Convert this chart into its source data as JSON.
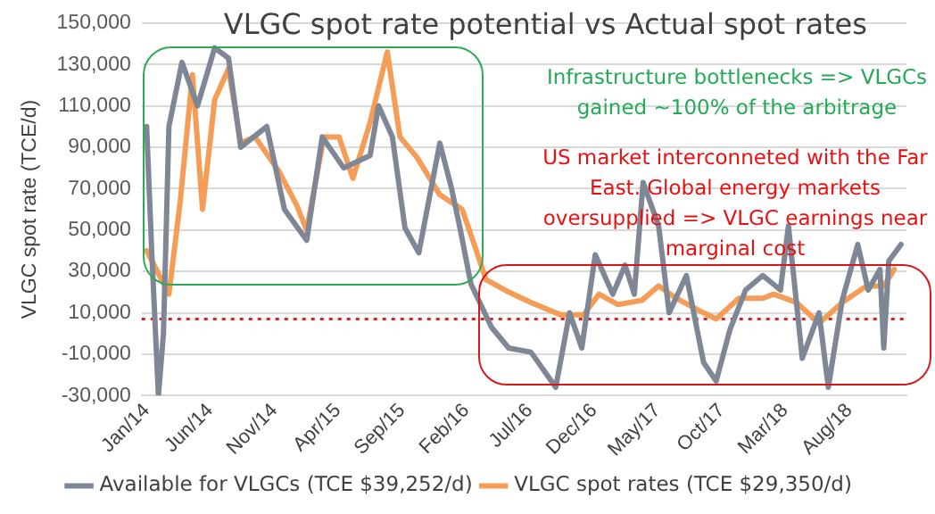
{
  "chart_data": {
    "type": "line",
    "title": "VLGC spot rate potential vs Actual spot rates",
    "ylabel": "VLGC spot rate (TCE/d)",
    "annotations": [
      "Infrastructure bottlenecks => VLGCs gained ~100% of the arbitrage",
      "US market interconneted with the Far East. Global energy markets oversupplied => VLGC earnings near marginal cost"
    ],
    "xlim": [
      "2013-12-20",
      "2018-12-15"
    ],
    "xticks": [
      {
        "value": "2014-01",
        "label": "Jan/14"
      },
      {
        "value": "2014-06",
        "label": "Jun/14"
      },
      {
        "value": "2014-11",
        "label": "Nov/14"
      },
      {
        "value": "2015-04",
        "label": "Apr/15"
      },
      {
        "value": "2015-09",
        "label": "Sep/15"
      },
      {
        "value": "2016-02",
        "label": "Feb/16"
      },
      {
        "value": "2016-07",
        "label": "Jul/16"
      },
      {
        "value": "2016-12",
        "label": "Dec/16"
      },
      {
        "value": "2017-05",
        "label": "May/17"
      },
      {
        "value": "2017-10",
        "label": "Oct/17"
      },
      {
        "value": "2018-03",
        "label": "Mar/18"
      },
      {
        "value": "2018-08",
        "label": "Aug/18"
      }
    ],
    "ylim": [
      -30000,
      150000
    ],
    "yticks": [
      {
        "value": -30000,
        "label": "-30,000"
      },
      {
        "value": -10000,
        "label": "-10,000"
      },
      {
        "value": 10000,
        "label": "10,000"
      },
      {
        "value": 30000,
        "label": "30,000"
      },
      {
        "value": 50000,
        "label": "50,000"
      },
      {
        "value": 70000,
        "label": "70,000"
      },
      {
        "value": 90000,
        "label": "90,000"
      },
      {
        "value": 110000,
        "label": "110,000"
      },
      {
        "value": 130000,
        "label": "130,000"
      },
      {
        "value": 150000,
        "label": "150,000"
      }
    ],
    "grid": "y",
    "legend": "bottom",
    "marker": "none",
    "line_style": "solid",
    "ref_lines": [
      {
        "axis": "y",
        "value": 7000,
        "color": "#e02020",
        "line_style": "dotted"
      }
    ],
    "series": [
      {
        "name": "Available for VLGCs (TCE $39,252/d)",
        "color": "#7f8797",
        "x": [
          "2014-01-01",
          "2014-01-13",
          "2014-01-29",
          "2014-02-10",
          "2014-02-23",
          "2014-03-26",
          "2014-05-02",
          "2014-06-12",
          "2014-07-15",
          "2014-08-13",
          "2014-10-14",
          "2014-11-25",
          "2015-01-17",
          "2015-02-23",
          "2015-04-15",
          "2015-06-17",
          "2015-07-07",
          "2015-08-09",
          "2015-09-08",
          "2015-10-11",
          "2015-11-30",
          "2015-12-28",
          "2016-01-18",
          "2016-02-12",
          "2016-04-01",
          "2016-05-12",
          "2016-07-04",
          "2016-09-01",
          "2016-10-04",
          "2016-11-02",
          "2016-12-04",
          "2017-01-15",
          "2017-02-13",
          "2017-03-07",
          "2017-03-28",
          "2017-05-04",
          "2017-05-29",
          "2017-07-09",
          "2017-08-19",
          "2017-09-18",
          "2017-10-21",
          "2017-11-27",
          "2018-01-07",
          "2018-02-18",
          "2018-03-09",
          "2018-04-11",
          "2018-05-21",
          "2018-06-12",
          "2018-07-15",
          "2018-08-21",
          "2018-09-15",
          "2018-10-13",
          "2018-10-22",
          "2018-11-03",
          "2018-12-02"
        ],
        "values": [
          100000,
          40000,
          -30000,
          0,
          100000,
          131000,
          110000,
          138000,
          133000,
          90000,
          100000,
          60000,
          45000,
          95000,
          80000,
          86000,
          110000,
          95000,
          51000,
          39000,
          92000,
          70000,
          50000,
          24000,
          3000,
          -7000,
          -9000,
          -26000,
          10000,
          -7000,
          38000,
          19000,
          33000,
          19000,
          73000,
          52000,
          10000,
          28000,
          -14000,
          -23000,
          2000,
          21000,
          28000,
          21000,
          52000,
          -12000,
          10000,
          -26000,
          16000,
          43000,
          21000,
          31000,
          -7000,
          35000,
          43000
        ]
      },
      {
        "name": "VLGC spot rates (TCE $29,350/d)",
        "color": "#f59d56",
        "x": [
          "2014-01-01",
          "2014-02-23",
          "2014-03-22",
          "2014-04-20",
          "2014-05-14",
          "2014-06-12",
          "2014-07-15",
          "2014-08-13",
          "2014-09-16",
          "2014-11-13",
          "2014-12-24",
          "2015-01-17",
          "2015-02-27",
          "2015-04-04",
          "2015-05-07",
          "2015-06-17",
          "2015-07-28",
          "2015-08-27",
          "2015-10-07",
          "2015-11-30",
          "2016-01-22",
          "2016-02-20",
          "2016-03-19",
          "2016-05-12",
          "2016-07-04",
          "2016-09-13",
          "2016-11-06",
          "2016-12-13",
          "2017-01-27",
          "2017-03-25",
          "2017-05-04",
          "2017-06-15",
          "2017-08-19",
          "2017-09-18",
          "2017-11-11",
          "2018-01-07",
          "2018-02-02",
          "2018-03-28",
          "2018-05-21",
          "2018-07-15",
          "2018-09-11",
          "2018-10-22",
          "2018-11-16"
        ],
        "values": [
          40000,
          19000,
          64000,
          125000,
          60000,
          113000,
          128000,
          92000,
          95000,
          78000,
          62000,
          50000,
          95000,
          95000,
          75000,
          102000,
          136000,
          95000,
          85000,
          67000,
          60000,
          43000,
          26000,
          20000,
          15000,
          9000,
          9000,
          19000,
          14000,
          16000,
          23000,
          17000,
          10000,
          7000,
          17000,
          17000,
          19000,
          15000,
          5000,
          15000,
          23000,
          23000,
          31000
        ]
      }
    ]
  }
}
